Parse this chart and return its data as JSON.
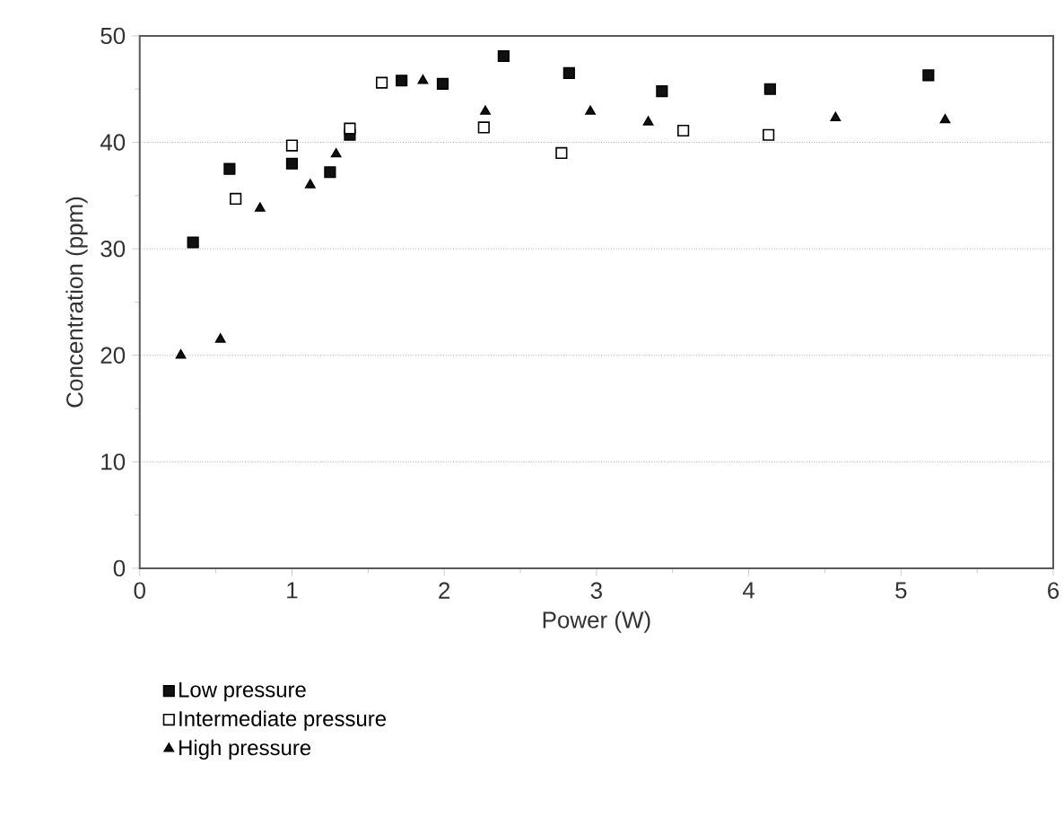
{
  "chart_data": {
    "type": "scatter",
    "xlabel": "Power (W)",
    "ylabel": "Concentration (ppm)",
    "xlim": [
      0,
      6
    ],
    "xticks": [
      0,
      1,
      2,
      3,
      4,
      5,
      6
    ],
    "ylim": [
      0,
      50
    ],
    "yticks": [
      0,
      10,
      20,
      30,
      40,
      50
    ],
    "grid": "y",
    "legend": "bottom",
    "series": [
      {
        "name": "Low pressure",
        "color": "#111111",
        "marker": "square",
        "x": [
          0.35,
          0.59,
          1.0,
          1.25,
          1.38,
          1.72,
          1.99,
          2.39,
          2.82,
          3.43,
          4.14,
          5.18
        ],
        "values": [
          30.6,
          37.5,
          38,
          37.2,
          40.7,
          45.8,
          45.5,
          48.1,
          46.5,
          44.8,
          45,
          46.3
        ]
      },
      {
        "name": "Intermediate pressure",
        "color": "#ffffff",
        "marker": "square",
        "x": [
          0.63,
          1.0,
          1.38,
          1.59,
          2.26,
          2.77,
          3.57,
          4.13
        ],
        "values": [
          34.7,
          39.7,
          41.3,
          45.6,
          41.4,
          39,
          41.1,
          40.7
        ]
      },
      {
        "name": "High pressure",
        "color": "#111111",
        "marker": "triangle",
        "x": [
          0.27,
          0.53,
          0.79,
          1.12,
          1.29,
          1.86,
          2.27,
          2.96,
          3.34,
          4.57,
          5.29
        ],
        "values": [
          20,
          21.5,
          33.8,
          36,
          38.9,
          45.8,
          42.9,
          42.9,
          41.9,
          42.3,
          42.1
        ]
      }
    ]
  }
}
